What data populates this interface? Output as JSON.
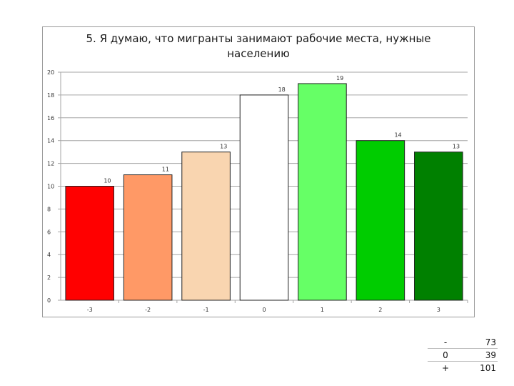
{
  "chart_data": {
    "type": "bar",
    "title_lines": [
      "5. Я думаю, что мигранты занимают рабочие места, нужные",
      "населению"
    ],
    "categories": [
      "-3",
      "-2",
      "-1",
      "0",
      "1",
      "2",
      "3"
    ],
    "values": [
      10,
      11,
      13,
      18,
      19,
      14,
      13
    ],
    "bar_colors": [
      "#ff0000",
      "#ff9966",
      "#f9d5b0",
      "#ffffff",
      "#66ff66",
      "#00cc00",
      "#008000"
    ],
    "ylim": [
      0,
      20
    ],
    "yticks": [
      0,
      2,
      4,
      6,
      8,
      10,
      12,
      14,
      16,
      18,
      20
    ],
    "grid": true,
    "legend": "none"
  },
  "summary_table": [
    {
      "key": "-",
      "value": "73"
    },
    {
      "key": "0",
      "value": "39"
    },
    {
      "key": "+",
      "value": "101"
    }
  ]
}
